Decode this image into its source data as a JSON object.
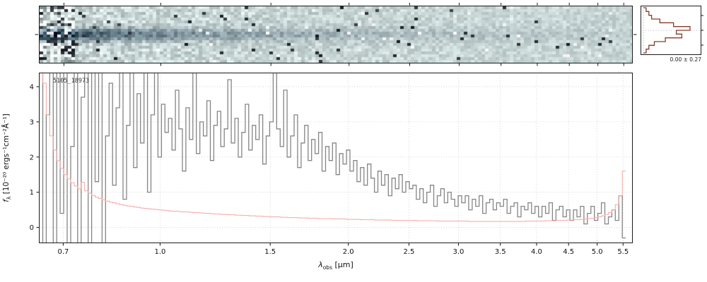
{
  "panel_2d": {
    "bg_color": "#c7d6d6",
    "trace_color": "#223649"
  },
  "histogram": {
    "label": "0.00 ± 0.27",
    "color": "#8b3a2b",
    "counts": [
      1,
      2,
      3,
      6,
      11,
      17,
      12,
      14,
      8,
      4,
      2,
      1
    ]
  },
  "chart_data": {
    "type": "line",
    "object_id": "5105_18973",
    "xlabel": {
      "symbol": "λ",
      "subscript": "obs",
      "unit": " [μm]"
    },
    "ylabel": {
      "symbol": "f",
      "subscript": "λ",
      "unit": " [10⁻²⁰ ergs⁻¹cm⁻²Å⁻¹]"
    },
    "x_scale": "log",
    "xlim": [
      0.64,
      5.7
    ],
    "ylim": [
      -0.45,
      4.4
    ],
    "x_start": 0.645,
    "x_end": 5.52,
    "n_points": 168,
    "x_ticks": [
      0.7,
      1.0,
      1.5,
      2.0,
      2.5,
      3.0,
      3.5,
      4.0,
      4.5,
      5.0,
      5.5
    ],
    "x_tick_labels": [
      "0.7",
      "1.0",
      "1.5",
      "2.0",
      "2.5",
      "3.0",
      "3.5",
      "4.0",
      "4.5",
      "5.0",
      "5.5"
    ],
    "y_ticks": [
      0,
      1,
      2,
      3,
      4
    ],
    "grid": "dotted",
    "series": [
      {
        "name": "flux",
        "color": "#858585",
        "values": [
          5.6,
          -0.9,
          3.2,
          6.1,
          -1.3,
          4.5,
          0.4,
          5.9,
          -0.6,
          2.3,
          6.2,
          -1.1,
          3.7,
          5.2,
          -0.8,
          4.9,
          1.3,
          5.6,
          -1.0,
          2.6,
          4.1,
          1.2,
          3.4,
          5.3,
          0.8,
          2.9,
          4.6,
          1.7,
          3.8,
          2.4,
          5.0,
          1.0,
          3.2,
          4.4,
          2.0,
          3.5,
          2.7,
          3.1,
          2.2,
          3.9,
          2.8,
          1.6,
          3.4,
          2.5,
          4.5,
          2.1,
          3.0,
          2.6,
          3.6,
          1.9,
          2.9,
          3.3,
          2.3,
          2.8,
          4.2,
          2.4,
          3.1,
          2.0,
          2.7,
          3.5,
          2.2,
          2.9,
          2.5,
          3.2,
          1.8,
          2.6,
          3.0,
          4.4,
          2.8,
          2.3,
          3.9,
          2.0,
          2.6,
          3.2,
          1.7,
          2.4,
          2.9,
          1.9,
          2.5,
          2.1,
          2.7,
          1.6,
          2.3,
          1.9,
          2.4,
          1.5,
          2.1,
          1.8,
          2.2,
          1.6,
          1.9,
          1.3,
          1.7,
          1.2,
          1.8,
          1.4,
          1.0,
          1.6,
          1.2,
          1.5,
          0.9,
          1.4,
          1.1,
          1.5,
          1.0,
          1.3,
          1.1,
          1.2,
          0.8,
          1.1,
          0.7,
          1.0,
          1.2,
          0.6,
          0.9,
          1.1,
          0.7,
          1.0,
          0.8,
          0.6,
          0.9,
          0.7,
          0.9,
          0.5,
          0.8,
          0.6,
          0.9,
          0.4,
          0.7,
          0.8,
          0.5,
          0.7,
          0.6,
          0.8,
          0.4,
          0.6,
          0.7,
          0.3,
          0.6,
          0.5,
          0.7,
          0.4,
          0.6,
          0.3,
          0.6,
          0.4,
          0.7,
          0.2,
          0.5,
          0.6,
          0.3,
          0.5,
          0.2,
          0.5,
          0.3,
          0.6,
          0.1,
          0.4,
          0.6,
          0.2,
          0.4,
          0.7,
          0.1,
          0.3,
          0.5,
          0.2,
          0.9,
          -0.3
        ]
      },
      {
        "name": "error",
        "color": "#f4a7a3",
        "values": [
          5.5,
          4.1,
          3.2,
          2.6,
          2.2,
          1.9,
          1.68,
          1.5,
          1.38,
          1.27,
          1.18,
          1.1,
          1.28,
          1.04,
          0.97,
          0.91,
          0.86,
          0.82,
          0.78,
          0.75,
          0.72,
          0.7,
          0.67,
          0.65,
          0.63,
          0.61,
          0.6,
          0.58,
          0.57,
          0.55,
          0.54,
          0.53,
          0.52,
          0.51,
          0.5,
          0.49,
          0.48,
          0.47,
          0.46,
          0.46,
          0.45,
          0.44,
          0.44,
          0.43,
          0.42,
          0.42,
          0.41,
          0.4,
          0.4,
          0.39,
          0.38,
          0.38,
          0.37,
          0.37,
          0.36,
          0.36,
          0.35,
          0.35,
          0.34,
          0.34,
          0.33,
          0.33,
          0.32,
          0.32,
          0.31,
          0.31,
          0.3,
          0.3,
          0.3,
          0.29,
          0.29,
          0.28,
          0.28,
          0.28,
          0.27,
          0.27,
          0.27,
          0.26,
          0.26,
          0.26,
          0.25,
          0.25,
          0.25,
          0.25,
          0.24,
          0.24,
          0.24,
          0.24,
          0.23,
          0.23,
          0.23,
          0.23,
          0.22,
          0.22,
          0.22,
          0.22,
          0.21,
          0.21,
          0.21,
          0.21,
          0.21,
          0.2,
          0.2,
          0.2,
          0.2,
          0.2,
          0.2,
          0.2,
          0.19,
          0.19,
          0.19,
          0.19,
          0.19,
          0.19,
          0.18,
          0.18,
          0.18,
          0.18,
          0.18,
          0.18,
          0.18,
          0.18,
          0.18,
          0.17,
          0.17,
          0.17,
          0.17,
          0.17,
          0.17,
          0.17,
          0.17,
          0.17,
          0.17,
          0.17,
          0.17,
          0.17,
          0.17,
          0.17,
          0.17,
          0.18,
          0.18,
          0.18,
          0.18,
          0.18,
          0.18,
          0.19,
          0.19,
          0.19,
          0.2,
          0.2,
          0.2,
          0.21,
          0.21,
          0.22,
          0.22,
          0.23,
          0.24,
          0.25,
          0.26,
          0.28,
          0.3,
          0.33,
          0.37,
          0.42,
          0.5,
          0.65,
          0.9,
          1.6
        ]
      }
    ]
  }
}
